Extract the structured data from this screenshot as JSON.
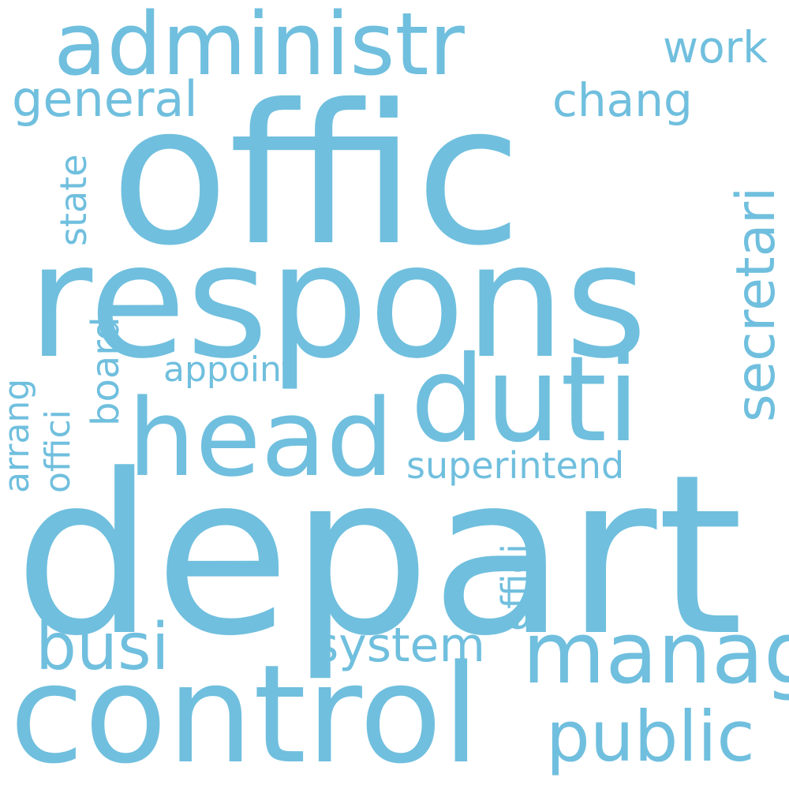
{
  "style": {
    "word_color": "#70bfde",
    "background": "#ffffff"
  },
  "words": {
    "depart": "depart",
    "offic": "offic",
    "respons": "respons",
    "control": "control",
    "duti": "duti",
    "head": "head",
    "administr": "administr",
    "manag": "manag",
    "secretari": "secretari",
    "public": "public",
    "busi": "busi",
    "system": "system",
    "general": "general",
    "chang": "chang",
    "work": "work",
    "appoint": "appoint",
    "superintend": "superintend",
    "effici": "effici",
    "board": "board",
    "state": "state",
    "offici": "offici",
    "arrang": "arrang"
  }
}
